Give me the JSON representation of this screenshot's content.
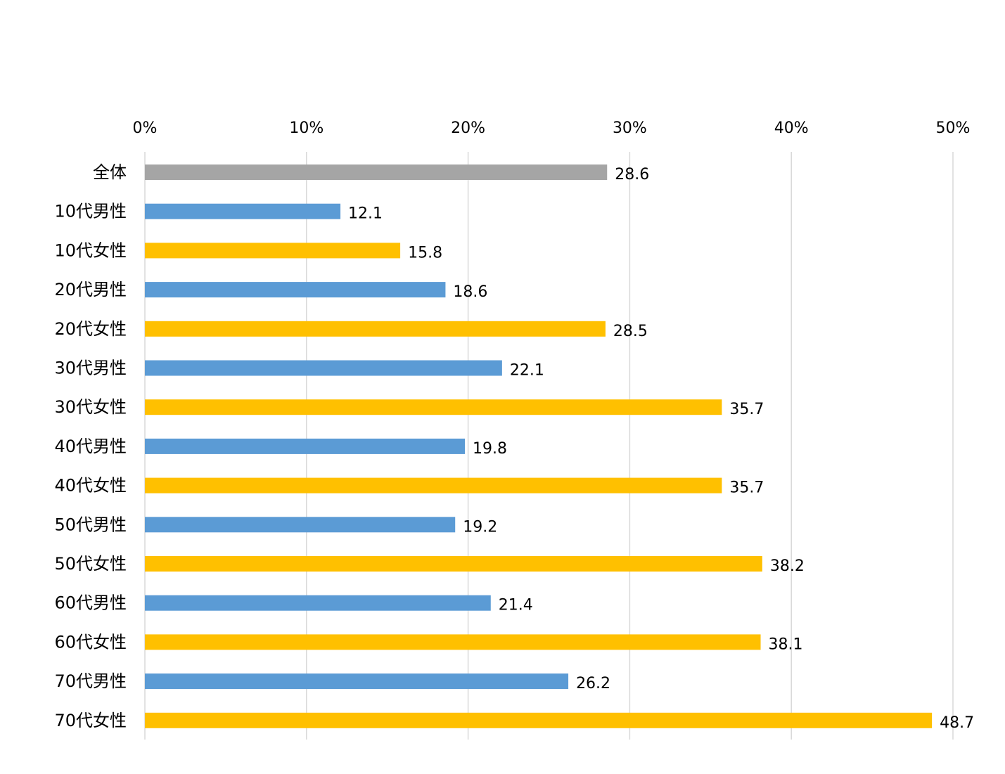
{
  "chart_data": {
    "type": "bar",
    "orientation": "horizontal",
    "categories": [
      "全体",
      "10代男性",
      "10代女性",
      "20代男性",
      "20代女性",
      "30代男性",
      "30代女性",
      "40代男性",
      "40代女性",
      "50代男性",
      "50代女性",
      "60代男性",
      "60代女性",
      "70代男性",
      "70代女性"
    ],
    "values": [
      28.6,
      12.1,
      15.8,
      18.6,
      28.5,
      22.1,
      35.7,
      19.8,
      35.7,
      19.2,
      38.2,
      21.4,
      38.1,
      26.2,
      48.7
    ],
    "data_labels": [
      "28.6",
      "12.1",
      "15.8",
      "18.6",
      "28.5",
      "22.1",
      "35.7",
      "19.8",
      "35.7",
      "19.2",
      "38.2",
      "21.4",
      "38.1",
      "26.2",
      "48.7"
    ],
    "groups": [
      "total",
      "male",
      "female",
      "male",
      "female",
      "male",
      "female",
      "male",
      "female",
      "male",
      "female",
      "male",
      "female",
      "male",
      "female"
    ],
    "colors": {
      "total": "#a5a5a5",
      "male": "#5b9bd5",
      "female": "#ffc000"
    },
    "xlim": [
      0,
      50
    ],
    "xticks": [
      0,
      10,
      20,
      30,
      40,
      50
    ],
    "xtick_labels": [
      "0%",
      "10%",
      "20%",
      "30%",
      "40%",
      "50%"
    ],
    "xaxis_position": "top",
    "grid": true,
    "legend": "none",
    "title": "",
    "xlabel": "",
    "ylabel": ""
  }
}
